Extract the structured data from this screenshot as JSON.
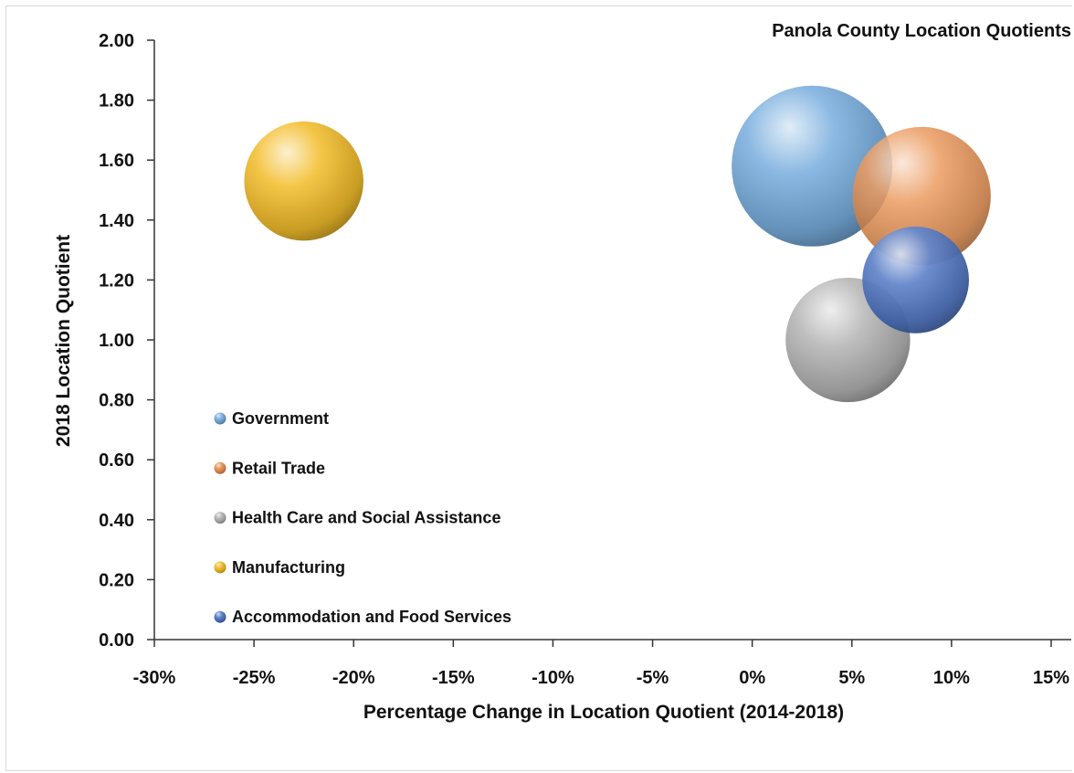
{
  "chart_data": {
    "type": "bubble",
    "title": "Panola County Location Quotients",
    "xlabel": "Percentage Change in Location Quotient (2014-2018)",
    "ylabel": "2018 Location Quotient",
    "xlim": [
      -30,
      15
    ],
    "ylim": [
      0,
      2
    ],
    "x_ticks": [
      "-30%",
      "-25%",
      "-20%",
      "-15%",
      "-10%",
      "-5%",
      "0%",
      "5%",
      "10%",
      "15%"
    ],
    "y_ticks": [
      "0.00",
      "0.20",
      "0.40",
      "0.60",
      "0.80",
      "1.00",
      "1.20",
      "1.40",
      "1.60",
      "1.80",
      "2.00"
    ],
    "grid": false,
    "legend_position": "left",
    "series": [
      {
        "name": "Government",
        "x": 3.0,
        "y": 1.58,
        "size": 1.0,
        "color": "#6fa8dc"
      },
      {
        "name": "Retail Trade",
        "x": 8.5,
        "y": 1.48,
        "size": 0.74,
        "color": "#e88a45"
      },
      {
        "name": "Health Care and Social Assistance",
        "x": 4.8,
        "y": 1.0,
        "size": 0.6,
        "color": "#b0b0b0"
      },
      {
        "name": "Manufacturing",
        "x": -22.5,
        "y": 1.53,
        "size": 0.55,
        "color": "#f2b81c"
      },
      {
        "name": "Accommodation and Food Services",
        "x": 8.2,
        "y": 1.2,
        "size": 0.44,
        "color": "#4a72c2"
      }
    ]
  }
}
